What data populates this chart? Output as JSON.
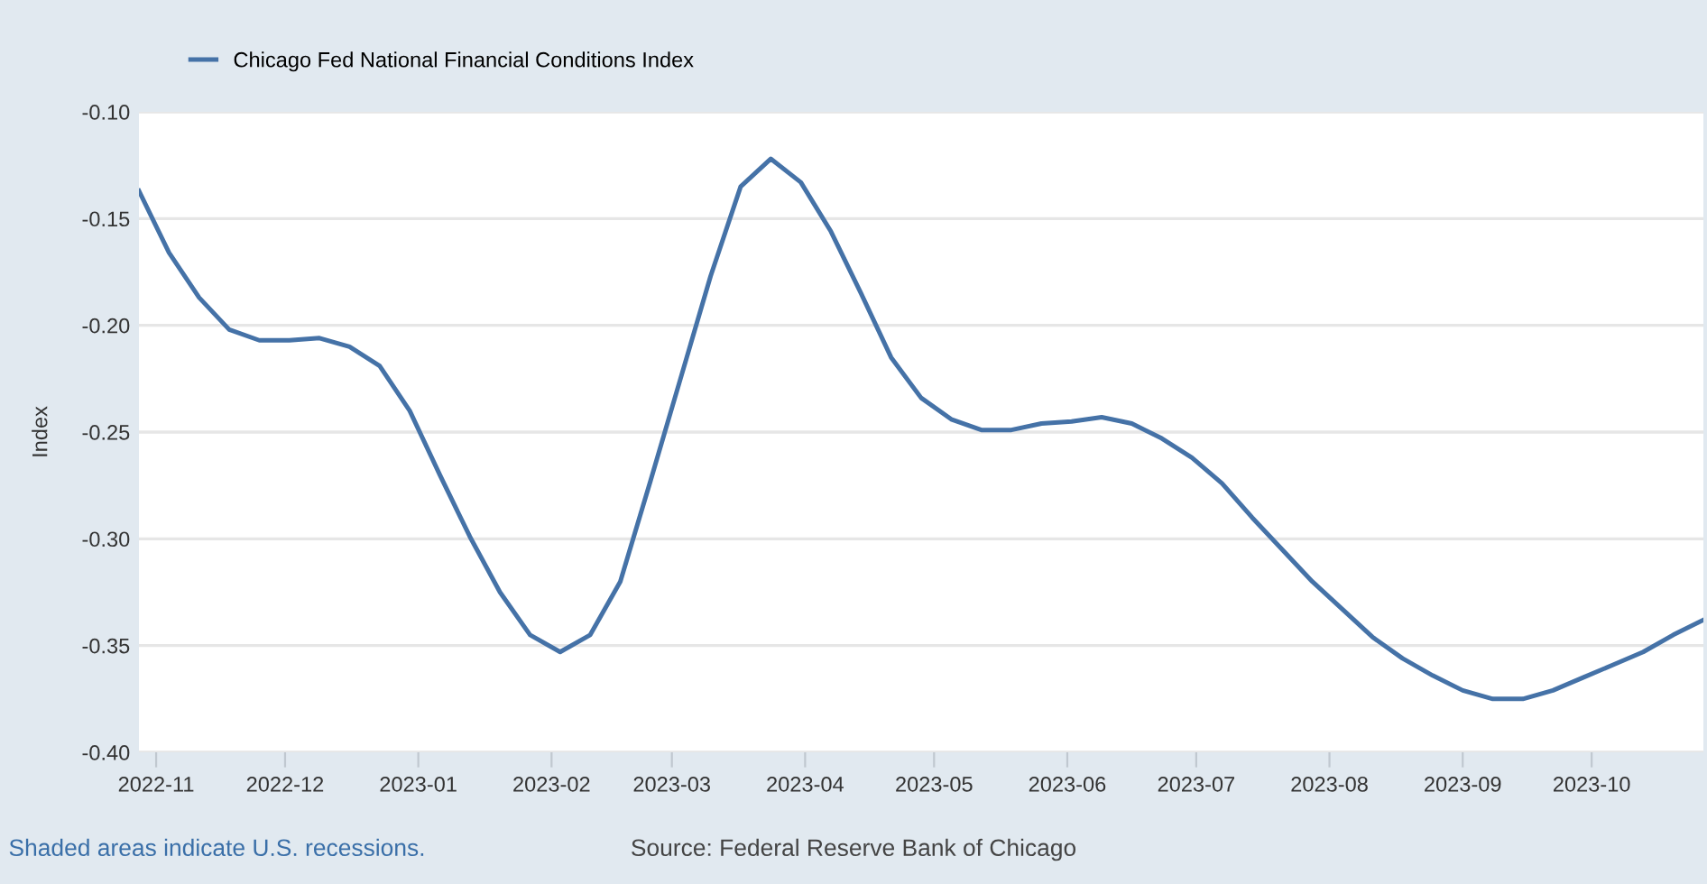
{
  "chart_data": {
    "type": "line",
    "ylabel": "Index",
    "x": [
      "2022-10-28",
      "2022-11-04",
      "2022-11-11",
      "2022-11-18",
      "2022-11-25",
      "2022-12-02",
      "2022-12-09",
      "2022-12-16",
      "2022-12-23",
      "2022-12-30",
      "2023-01-06",
      "2023-01-13",
      "2023-01-20",
      "2023-01-27",
      "2023-02-03",
      "2023-02-10",
      "2023-02-17",
      "2023-02-24",
      "2023-03-03",
      "2023-03-10",
      "2023-03-17",
      "2023-03-24",
      "2023-03-31",
      "2023-04-07",
      "2023-04-14",
      "2023-04-21",
      "2023-04-28",
      "2023-05-05",
      "2023-05-12",
      "2023-05-19",
      "2023-05-26",
      "2023-06-02",
      "2023-06-09",
      "2023-06-16",
      "2023-06-23",
      "2023-06-30",
      "2023-07-07",
      "2023-07-14",
      "2023-07-21",
      "2023-07-28",
      "2023-08-04",
      "2023-08-11",
      "2023-08-18",
      "2023-08-25",
      "2023-09-01",
      "2023-09-08",
      "2023-09-15",
      "2023-09-22",
      "2023-09-29",
      "2023-10-06",
      "2023-10-13",
      "2023-10-20",
      "2023-10-27"
    ],
    "series": [
      {
        "name": "Chicago Fed National Financial Conditions Index",
        "color": "#4572a7",
        "values": [
          -0.137,
          -0.166,
          -0.187,
          -0.202,
          -0.207,
          -0.207,
          -0.206,
          -0.21,
          -0.219,
          -0.24,
          -0.27,
          -0.299,
          -0.325,
          -0.345,
          -0.353,
          -0.345,
          -0.32,
          -0.273,
          -0.225,
          -0.177,
          -0.135,
          -0.122,
          -0.133,
          -0.156,
          -0.185,
          -0.215,
          -0.234,
          -0.244,
          -0.249,
          -0.249,
          -0.246,
          -0.245,
          -0.243,
          -0.246,
          -0.253,
          -0.262,
          -0.274,
          -0.29,
          -0.305,
          -0.32,
          -0.333,
          -0.346,
          -0.356,
          -0.364,
          -0.371,
          -0.375,
          -0.375,
          -0.371,
          -0.365,
          -0.359,
          -0.353,
          -0.345,
          -0.338
        ]
      }
    ],
    "xlim": [
      "2022-10-28",
      "2023-10-27"
    ],
    "xticks": [
      {
        "value": "2022-11-01",
        "label": "2022-11"
      },
      {
        "value": "2022-12-01",
        "label": "2022-12"
      },
      {
        "value": "2023-01-01",
        "label": "2023-01"
      },
      {
        "value": "2023-02-01",
        "label": "2023-02"
      },
      {
        "value": "2023-03-01",
        "label": "2023-03"
      },
      {
        "value": "2023-04-01",
        "label": "2023-04"
      },
      {
        "value": "2023-05-01",
        "label": "2023-05"
      },
      {
        "value": "2023-06-01",
        "label": "2023-06"
      },
      {
        "value": "2023-07-01",
        "label": "2023-07"
      },
      {
        "value": "2023-08-01",
        "label": "2023-08"
      },
      {
        "value": "2023-09-01",
        "label": "2023-09"
      },
      {
        "value": "2023-10-01",
        "label": "2023-10"
      }
    ],
    "ylim": [
      -0.4,
      -0.1
    ],
    "yticks": [
      {
        "value": -0.4,
        "label": "-0.40"
      },
      {
        "value": -0.35,
        "label": "-0.35"
      },
      {
        "value": -0.3,
        "label": "-0.30"
      },
      {
        "value": -0.25,
        "label": "-0.25"
      },
      {
        "value": -0.2,
        "label": "-0.20"
      },
      {
        "value": -0.15,
        "label": "-0.15"
      },
      {
        "value": -0.1,
        "label": "-0.10"
      }
    ],
    "grid": "y",
    "legend": "top left",
    "marker": "none",
    "line_style": "solid",
    "annotations": [
      "Shaded areas indicate U.S. recessions.",
      "Source: Federal Reserve Bank of Chicago"
    ]
  }
}
